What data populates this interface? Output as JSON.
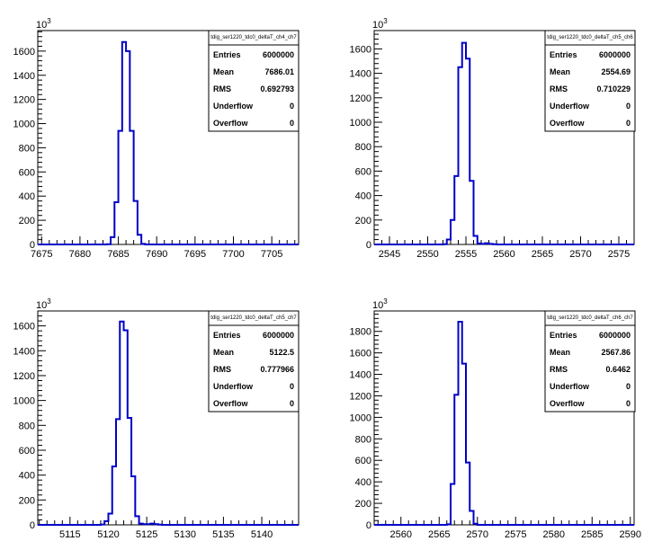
{
  "chart_data": [
    {
      "type": "histogram",
      "stats_title": "tdig_ser1220_tdc0_deltaT_ch4_ch7",
      "stats": [
        {
          "label": "Entries",
          "value": "6000000"
        },
        {
          "label": "Mean",
          "value": "7686.01"
        },
        {
          "label": "RMS",
          "value": "0.692793"
        },
        {
          "label": "Underflow",
          "value": "0"
        },
        {
          "label": "Overflow",
          "value": "0"
        }
      ],
      "y_exponent": "10",
      "y_exponent_power": "3",
      "xlim": [
        7674.5,
        7708.5
      ],
      "ylim": [
        0,
        1770
      ],
      "x_ticks": [
        7675,
        7680,
        7685,
        7690,
        7695,
        7700,
        7705
      ],
      "x_tick_labels": [
        "7675",
        "7680",
        "7685",
        "7690",
        "7695",
        "7700",
        "7705"
      ],
      "y_ticks": [
        0,
        200,
        400,
        600,
        800,
        1000,
        1200,
        1400,
        1600
      ],
      "y_tick_labels": [
        "0",
        "200",
        "400",
        "600",
        "800",
        "1000",
        "1200",
        "1400",
        "1600"
      ],
      "bin_edges": [
        7683.5,
        7684,
        7684.5,
        7685,
        7685.5,
        7686,
        7686.5,
        7687,
        7687.5,
        7688,
        7688.5
      ],
      "counts": [
        2,
        60,
        350,
        940,
        1675,
        1600,
        940,
        360,
        80,
        5
      ]
    },
    {
      "type": "histogram",
      "stats_title": "tdig_ser1220_tdc0_deltaT_ch5_ch6",
      "stats": [
        {
          "label": "Entries",
          "value": "6000000"
        },
        {
          "label": "Mean",
          "value": "2554.69"
        },
        {
          "label": "RMS",
          "value": "0.710229"
        },
        {
          "label": "Underflow",
          "value": "0"
        },
        {
          "label": "Overflow",
          "value": "0"
        }
      ],
      "y_exponent": "10",
      "y_exponent_power": "3",
      "xlim": [
        2543,
        2577
      ],
      "ylim": [
        0,
        1750
      ],
      "x_ticks": [
        2545,
        2550,
        2555,
        2560,
        2565,
        2570,
        2575
      ],
      "x_tick_labels": [
        "2545",
        "2550",
        "2555",
        "2560",
        "2565",
        "2570",
        "2575"
      ],
      "y_ticks": [
        0,
        200,
        400,
        600,
        800,
        1000,
        1200,
        1400,
        1600
      ],
      "y_tick_labels": [
        "0",
        "200",
        "400",
        "600",
        "800",
        "1000",
        "1200",
        "1400",
        "1600"
      ],
      "bin_edges": [
        2552,
        2552.5,
        2553,
        2553.5,
        2554,
        2554.5,
        2555,
        2555.5,
        2556,
        2556.5,
        2557,
        2557.5,
        2558,
        2558.5,
        2559
      ],
      "counts": [
        2,
        40,
        200,
        560,
        1450,
        1650,
        1520,
        520,
        70,
        8,
        5,
        10,
        5,
        2
      ]
    },
    {
      "type": "histogram",
      "stats_title": "tdig_ser1220_tdc0_deltaT_ch5_ch7",
      "stats": [
        {
          "label": "Entries",
          "value": "6000000"
        },
        {
          "label": "Mean",
          "value": "5122.5"
        },
        {
          "label": "RMS",
          "value": "0.777966"
        },
        {
          "label": "Underflow",
          "value": "0"
        },
        {
          "label": "Overflow",
          "value": "0"
        }
      ],
      "y_exponent": "10",
      "y_exponent_power": "3",
      "xlim": [
        5110.8,
        5144.8
      ],
      "ylim": [
        0,
        1720
      ],
      "x_ticks": [
        5115,
        5120,
        5125,
        5130,
        5135,
        5140
      ],
      "x_tick_labels": [
        "5115",
        "5120",
        "5125",
        "5130",
        "5135",
        "5140"
      ],
      "y_ticks": [
        0,
        200,
        400,
        600,
        800,
        1000,
        1200,
        1400,
        1600
      ],
      "y_tick_labels": [
        "0",
        "200",
        "400",
        "600",
        "800",
        "1000",
        "1200",
        "1400",
        "1600"
      ],
      "bin_edges": [
        5119,
        5119.5,
        5120,
        5120.5,
        5121,
        5121.5,
        5122,
        5122.5,
        5123,
        5123.5,
        5124,
        5124.5,
        5125,
        5125.5,
        5126,
        5126.5,
        5127
      ],
      "counts": [
        3,
        30,
        90,
        470,
        850,
        1635,
        1565,
        860,
        390,
        70,
        10,
        5,
        5,
        10,
        5,
        2
      ]
    },
    {
      "type": "histogram",
      "stats_title": "tdig_ser1220_tdc0_deltaT_ch6_ch7",
      "stats": [
        {
          "label": "Entries",
          "value": "6000000"
        },
        {
          "label": "Mean",
          "value": "2567.86"
        },
        {
          "label": "RMS",
          "value": "0.6462"
        },
        {
          "label": "Underflow",
          "value": "0"
        },
        {
          "label": "Overflow",
          "value": "0"
        }
      ],
      "y_exponent": "10",
      "y_exponent_power": "3",
      "xlim": [
        2556.5,
        2590.5
      ],
      "ylim": [
        0,
        1990
      ],
      "x_ticks": [
        2560,
        2565,
        2570,
        2575,
        2580,
        2585,
        2590
      ],
      "x_tick_labels": [
        "2560",
        "2565",
        "2570",
        "2575",
        "2580",
        "2585",
        "2590"
      ],
      "y_ticks": [
        0,
        200,
        400,
        600,
        800,
        1000,
        1200,
        1400,
        1600,
        1800
      ],
      "y_tick_labels": [
        "0",
        "200",
        "400",
        "600",
        "800",
        "1000",
        "1200",
        "1400",
        "1600",
        "1800"
      ],
      "bin_edges": [
        2566,
        2566.5,
        2567,
        2567.5,
        2568,
        2568.5,
        2569,
        2569.5,
        2570
      ],
      "counts": [
        5,
        380,
        1210,
        1890,
        1500,
        580,
        130,
        10
      ]
    }
  ]
}
